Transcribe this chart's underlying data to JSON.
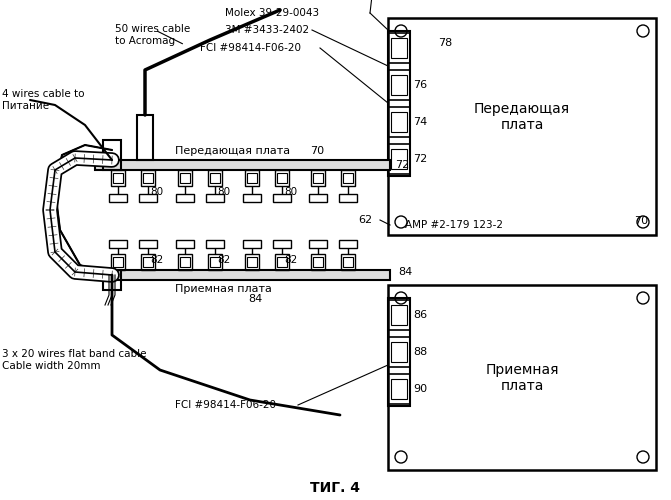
{
  "bg_color": "#ffffff",
  "line_color": "#000000",
  "fig_label": "ΤИГ. 4",
  "annotations": {
    "50_wires": "50 wires cable\nto Acromag",
    "4_wires": "4 wires cable to\nПитание",
    "molex": "Molex 39-29-0043",
    "3m": "3M #3433-2402",
    "fci_top": "FCI #98414-F06-20",
    "fci_bot": "FCI #98414-F06-20",
    "amp": "AMP #2-179 123-2",
    "tx_board_label": "Передающая\nплата",
    "tx_board_inline": "Передающая плата",
    "rx_board_label": "Приемная\nплата",
    "rx_board_inline": "Приемная плата",
    "flat_cable": "3 x 20 wires flat band cable\nCable width 20mm",
    "num_70": "70",
    "num_70b": "70",
    "num_72": "72",
    "num_74": "74",
    "num_76": "76",
    "num_78": "78",
    "num_80": "80",
    "num_62": "62",
    "num_82": "82",
    "num_84": "84",
    "num_84b": "84",
    "num_86": "86",
    "num_88": "88",
    "num_90": "90"
  }
}
